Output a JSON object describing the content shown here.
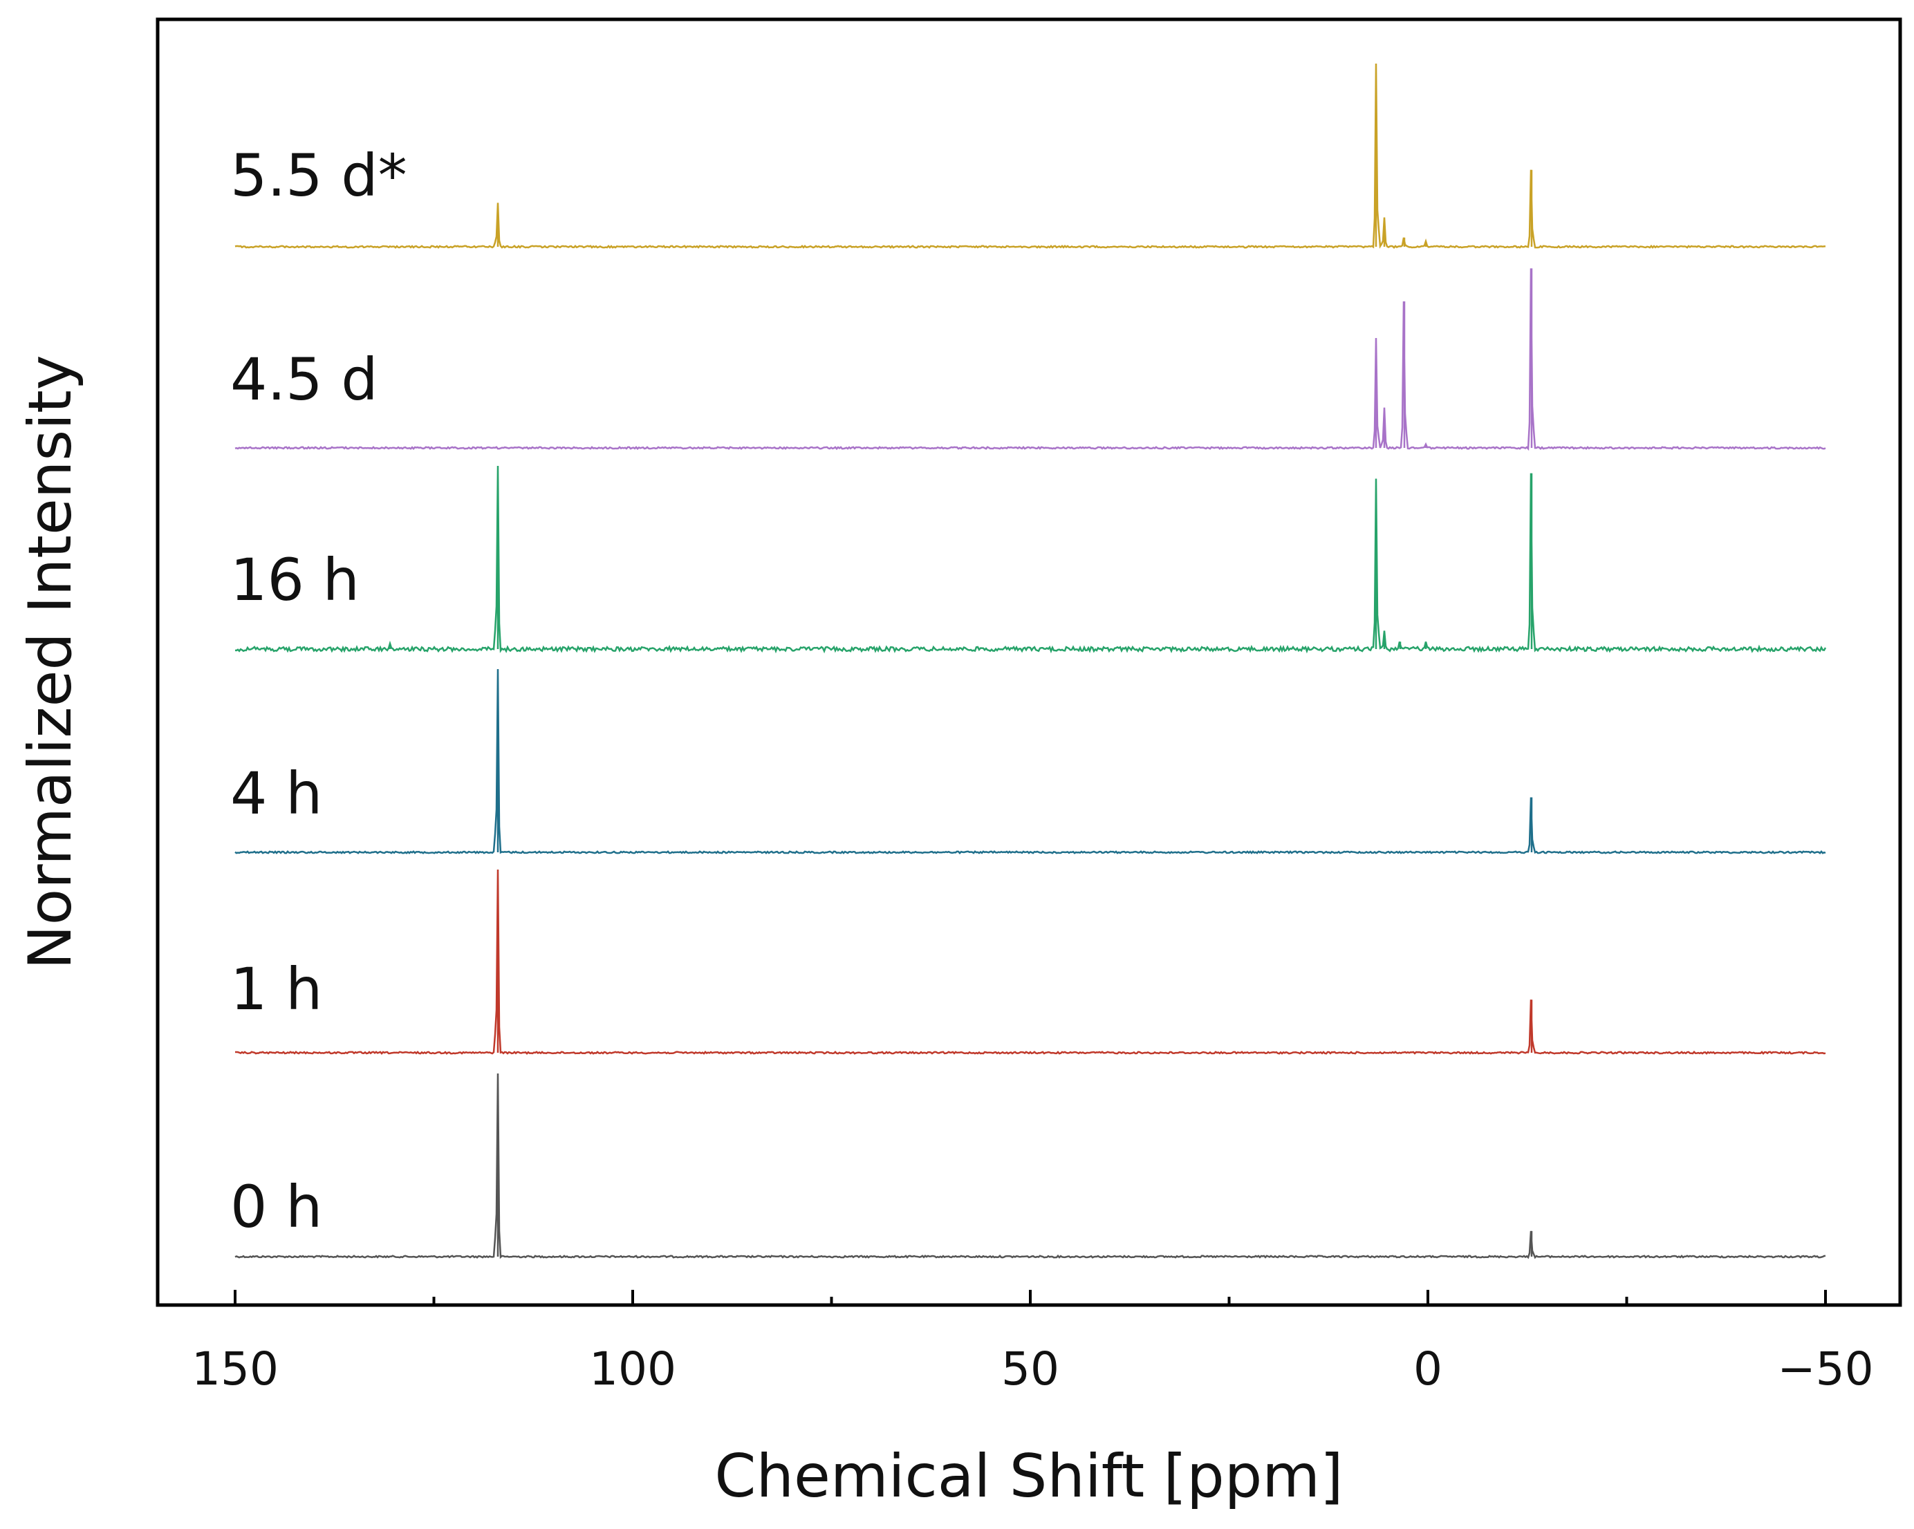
{
  "chart_data": {
    "type": "line",
    "title": "",
    "xlabel": "Chemical Shift [ppm]",
    "ylabel": "Normalized Intensity",
    "xlim": [
      160,
      -55
    ],
    "x_reversed": true,
    "grid": false,
    "x_ticks": [
      150,
      100,
      50,
      0,
      -50
    ],
    "x_tick_labels": [
      "150",
      "100",
      "50",
      "0",
      "−50"
    ],
    "x_minor_ticks": [
      125,
      75,
      25,
      -25
    ],
    "series": [
      {
        "name": "0 h",
        "color": "#555555",
        "peaks": [
          {
            "ppm": 117,
            "height": 1.0
          },
          {
            "ppm": -13,
            "height": 0.14
          }
        ]
      },
      {
        "name": "1 h",
        "color": "#c0392b",
        "peaks": [
          {
            "ppm": 117,
            "height": 1.0
          },
          {
            "ppm": -13,
            "height": 0.29
          }
        ]
      },
      {
        "name": "4 h",
        "color": "#1f6f8b",
        "peaks": [
          {
            "ppm": 117,
            "height": 1.0
          },
          {
            "ppm": -13,
            "height": 0.3
          }
        ]
      },
      {
        "name": "16 h",
        "color": "#27a36a",
        "peaks": [
          {
            "ppm": 130.5,
            "height": 0.03
          },
          {
            "ppm": 117,
            "height": 1.0
          },
          {
            "ppm": 6.5,
            "height": 0.93
          },
          {
            "ppm": 5.5,
            "height": 0.1
          },
          {
            "ppm": 3.5,
            "height": 0.04
          },
          {
            "ppm": 0.3,
            "height": 0.04
          },
          {
            "ppm": -13,
            "height": 0.96
          }
        ]
      },
      {
        "name": "4.5 d",
        "color": "#a873c8",
        "peaks": [
          {
            "ppm": 6.5,
            "height": 0.6
          },
          {
            "ppm": 5.5,
            "height": 0.22
          },
          {
            "ppm": 3.0,
            "height": 0.8
          },
          {
            "ppm": 0.3,
            "height": 0.02
          },
          {
            "ppm": -13,
            "height": 0.98
          }
        ]
      },
      {
        "name": "5.5 d*",
        "color": "#c9a227",
        "peaks": [
          {
            "ppm": 117,
            "height": 0.24
          },
          {
            "ppm": 6.5,
            "height": 1.0
          },
          {
            "ppm": 5.5,
            "height": 0.16
          },
          {
            "ppm": 3.0,
            "height": 0.05
          },
          {
            "ppm": 0.3,
            "height": 0.03
          },
          {
            "ppm": -13,
            "height": 0.42
          }
        ]
      }
    ]
  }
}
